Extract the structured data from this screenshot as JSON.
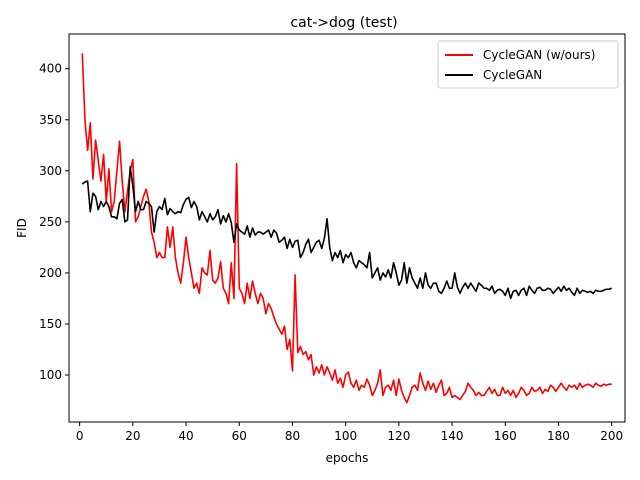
{
  "chart_data": {
    "type": "line",
    "title": "cat->dog (test)",
    "xlabel": "epochs",
    "ylabel": "FID",
    "xlim": [
      -4,
      205
    ],
    "ylim": [
      54,
      434
    ],
    "xticks": [
      0,
      20,
      40,
      60,
      80,
      100,
      120,
      140,
      160,
      180,
      200
    ],
    "yticks": [
      100,
      150,
      200,
      250,
      300,
      350,
      400
    ],
    "grid": false,
    "legend_position": "top-right",
    "series": [
      {
        "name": "CycleGAN (w/ours)",
        "color": "#ff0000",
        "x": [
          1,
          2,
          3,
          4,
          5,
          6,
          7,
          8,
          9,
          10,
          11,
          12,
          13,
          14,
          15,
          16,
          17,
          18,
          19,
          20,
          21,
          22,
          23,
          24,
          25,
          26,
          27,
          28,
          29,
          30,
          31,
          32,
          33,
          34,
          35,
          36,
          37,
          38,
          39,
          40,
          41,
          42,
          43,
          44,
          45,
          46,
          47,
          48,
          49,
          50,
          51,
          52,
          53,
          54,
          55,
          56,
          57,
          58,
          59,
          60,
          61,
          62,
          63,
          64,
          65,
          66,
          67,
          68,
          69,
          70,
          71,
          72,
          73,
          74,
          75,
          76,
          77,
          78,
          79,
          80,
          81,
          82,
          83,
          84,
          85,
          86,
          87,
          88,
          89,
          90,
          91,
          92,
          93,
          94,
          95,
          96,
          97,
          98,
          99,
          100,
          101,
          102,
          103,
          104,
          105,
          106,
          107,
          108,
          109,
          110,
          111,
          112,
          113,
          114,
          115,
          116,
          117,
          118,
          119,
          120,
          121,
          122,
          123,
          124,
          125,
          126,
          127,
          128,
          129,
          130,
          131,
          132,
          133,
          134,
          135,
          136,
          137,
          138,
          139,
          140,
          141,
          142,
          143,
          144,
          145,
          146,
          147,
          148,
          149,
          150,
          151,
          152,
          153,
          154,
          155,
          156,
          157,
          158,
          159,
          160,
          161,
          162,
          163,
          164,
          165,
          166,
          167,
          168,
          169,
          170,
          171,
          172,
          173,
          174,
          175,
          176,
          177,
          178,
          179,
          180,
          181,
          182,
          183,
          184,
          185,
          186,
          187,
          188,
          189,
          190,
          191,
          192,
          193,
          194,
          195,
          196,
          197,
          198,
          199,
          200
        ],
        "y": [
          415,
          350,
          320,
          347,
          292,
          330,
          310,
          290,
          316,
          270,
          302,
          260,
          270,
          300,
          329,
          290,
          260,
          280,
          300,
          311,
          250,
          255,
          265,
          275,
          282,
          270,
          240,
          230,
          215,
          220,
          215,
          215,
          245,
          225,
          245,
          215,
          200,
          190,
          210,
          235,
          215,
          200,
          185,
          190,
          180,
          205,
          200,
          198,
          222,
          193,
          190,
          195,
          211,
          185,
          180,
          170,
          210,
          175,
          307,
          185,
          180,
          170,
          190,
          175,
          192,
          180,
          170,
          180,
          175,
          160,
          170,
          165,
          157,
          150,
          145,
          140,
          148,
          125,
          135,
          104,
          198,
          122,
          128,
          120,
          123,
          115,
          120,
          100,
          108,
          102,
          110,
          100,
          108,
          102,
          95,
          105,
          92,
          97,
          88,
          100,
          103,
          92,
          88,
          95,
          85,
          90,
          88,
          96,
          90,
          80,
          85,
          92,
          105,
          80,
          88,
          90,
          85,
          95,
          80,
          96,
          85,
          78,
          73,
          80,
          88,
          90,
          85,
          102,
          92,
          85,
          94,
          86,
          92,
          83,
          90,
          95,
          80,
          82,
          88,
          78,
          80,
          78,
          76,
          80,
          84,
          92,
          88,
          85,
          80,
          83,
          80,
          80,
          84,
          88,
          82,
          86,
          80,
          80,
          88,
          82,
          85,
          80,
          85,
          78,
          82,
          88,
          85,
          80,
          82,
          88,
          84,
          85,
          88,
          82,
          86,
          84,
          90,
          88,
          84,
          88,
          92,
          88,
          85,
          90,
          88,
          90,
          86,
          92,
          88,
          90,
          91,
          90,
          88,
          92,
          90,
          89,
          91,
          90,
          91,
          91
        ]
      },
      {
        "name": "CycleGAN",
        "color": "#000000",
        "x": [
          1,
          2,
          3,
          4,
          5,
          6,
          7,
          8,
          9,
          10,
          11,
          12,
          13,
          14,
          15,
          16,
          17,
          18,
          19,
          20,
          21,
          22,
          23,
          24,
          25,
          26,
          27,
          28,
          29,
          30,
          31,
          32,
          33,
          34,
          35,
          36,
          37,
          38,
          39,
          40,
          41,
          42,
          43,
          44,
          45,
          46,
          47,
          48,
          49,
          50,
          51,
          52,
          53,
          54,
          55,
          56,
          57,
          58,
          59,
          60,
          61,
          62,
          63,
          64,
          65,
          66,
          67,
          68,
          69,
          70,
          71,
          72,
          73,
          74,
          75,
          76,
          77,
          78,
          79,
          80,
          81,
          82,
          83,
          84,
          85,
          86,
          87,
          88,
          89,
          90,
          91,
          92,
          93,
          94,
          95,
          96,
          97,
          98,
          99,
          100,
          101,
          102,
          103,
          104,
          105,
          106,
          107,
          108,
          109,
          110,
          111,
          112,
          113,
          114,
          115,
          116,
          117,
          118,
          119,
          120,
          121,
          122,
          123,
          124,
          125,
          126,
          127,
          128,
          129,
          130,
          131,
          132,
          133,
          134,
          135,
          136,
          137,
          138,
          139,
          140,
          141,
          142,
          143,
          144,
          145,
          146,
          147,
          148,
          149,
          150,
          151,
          152,
          153,
          154,
          155,
          156,
          157,
          158,
          159,
          160,
          161,
          162,
          163,
          164,
          165,
          166,
          167,
          168,
          169,
          170,
          171,
          172,
          173,
          174,
          175,
          176,
          177,
          178,
          179,
          180,
          181,
          182,
          183,
          184,
          185,
          186,
          187,
          188,
          189,
          190,
          191,
          192,
          193,
          194,
          195,
          196,
          197,
          198,
          199,
          200
        ],
        "y": [
          287,
          289,
          290,
          260,
          278,
          275,
          262,
          270,
          265,
          270,
          265,
          255,
          255,
          253,
          268,
          272,
          250,
          252,
          304,
          285,
          260,
          270,
          262,
          262,
          270,
          268,
          265,
          240,
          260,
          265,
          262,
          273,
          257,
          263,
          260,
          258,
          260,
          259,
          267,
          272,
          274,
          264,
          270,
          265,
          252,
          260,
          255,
          250,
          258,
          252,
          255,
          262,
          248,
          256,
          250,
          258,
          249,
          230,
          248,
          242,
          240,
          238,
          246,
          235,
          244,
          237,
          240,
          240,
          238,
          240,
          242,
          235,
          242,
          239,
          230,
          232,
          235,
          224,
          233,
          225,
          231,
          232,
          215,
          220,
          228,
          233,
          220,
          225,
          230,
          232,
          224,
          234,
          253,
          225,
          212,
          220,
          215,
          222,
          210,
          218,
          215,
          220,
          210,
          205,
          212,
          210,
          208,
          205,
          220,
          195,
          200,
          205,
          193,
          200,
          196,
          203,
          195,
          210,
          200,
          188,
          193,
          210,
          190,
          205,
          195,
          190,
          185,
          195,
          185,
          200,
          188,
          185,
          190,
          190,
          182,
          180,
          185,
          192,
          185,
          185,
          200,
          186,
          180,
          186,
          190,
          185,
          190,
          186,
          182,
          190,
          188,
          185,
          185,
          183,
          187,
          180,
          183,
          184,
          182,
          178,
          185,
          175,
          182,
          183,
          178,
          183,
          185,
          178,
          187,
          183,
          180,
          185,
          186,
          183,
          183,
          185,
          184,
          180,
          183,
          186,
          182,
          187,
          183,
          185,
          181,
          178,
          185,
          180,
          183,
          182,
          181,
          182,
          180,
          183,
          182,
          182,
          183,
          184,
          184,
          185
        ]
      }
    ]
  }
}
